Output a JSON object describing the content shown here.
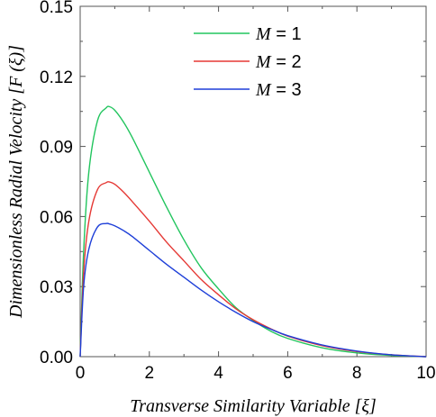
{
  "chart_data": {
    "type": "line",
    "title": "",
    "xlabel": "Transverse Similarity Variable [ξ]",
    "ylabel": "Dimensionless Radial Velocity [F (ξ)]",
    "xlim": [
      0,
      10
    ],
    "ylim": [
      0,
      0.15
    ],
    "xticks": [
      0,
      2,
      4,
      6,
      8,
      10
    ],
    "xtick_labels": [
      "0",
      "2",
      "4",
      "6",
      "8",
      "10"
    ],
    "yticks": [
      0,
      0.03,
      0.06,
      0.09,
      0.12,
      0.15
    ],
    "ytick_labels": [
      "0.00",
      "0.03",
      "0.06",
      "0.09",
      "0.12",
      "0.15"
    ],
    "grid": false,
    "legend_position": "top-center",
    "x": [
      0,
      0.1,
      0.25,
      0.5,
      0.75,
      0.85,
      1.0,
      1.25,
      1.5,
      2.0,
      2.5,
      3.0,
      3.5,
      4.0,
      4.5,
      5.0,
      5.5,
      6.0,
      7.0,
      8.0,
      9.0,
      10.0
    ],
    "series": [
      {
        "name": "M = 1",
        "label_var": "M",
        "label_val": "= 1",
        "color": "#22c55e",
        "values": [
          0,
          0.045,
          0.079,
          0.101,
          0.1065,
          0.107,
          0.1055,
          0.1005,
          0.094,
          0.079,
          0.064,
          0.05,
          0.038,
          0.029,
          0.021,
          0.0155,
          0.011,
          0.0078,
          0.0038,
          0.0016,
          0.0005,
          0.0
        ]
      },
      {
        "name": "M = 2",
        "label_var": "M",
        "label_val": "= 2",
        "color": "#e53935",
        "values": [
          0,
          0.036,
          0.058,
          0.0715,
          0.0745,
          0.0748,
          0.0738,
          0.0705,
          0.0665,
          0.058,
          0.049,
          0.041,
          0.033,
          0.0265,
          0.0205,
          0.0158,
          0.012,
          0.0088,
          0.0047,
          0.0022,
          0.0008,
          0.0
        ]
      },
      {
        "name": "M = 3",
        "label_var": "M",
        "label_val": "= 3",
        "color": "#1e3fd8",
        "values": [
          0,
          0.03,
          0.046,
          0.0555,
          0.057,
          0.0568,
          0.056,
          0.054,
          0.0515,
          0.0455,
          0.0395,
          0.034,
          0.0285,
          0.0235,
          0.019,
          0.015,
          0.0118,
          0.009,
          0.005,
          0.0024,
          0.0008,
          0.0
        ]
      }
    ]
  }
}
